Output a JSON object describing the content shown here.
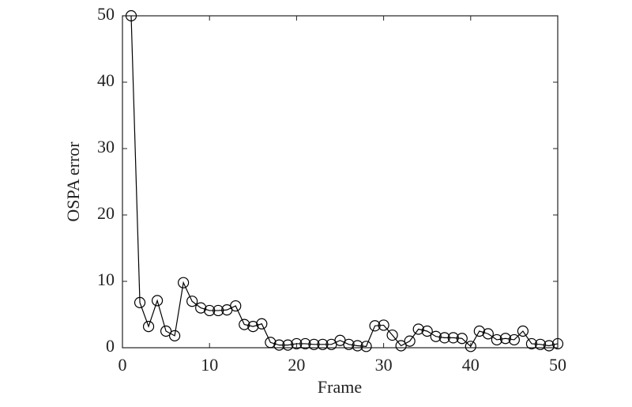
{
  "chart_data": {
    "type": "line",
    "x_label": "Frame",
    "y_label": "OSPA error",
    "x": [
      1,
      2,
      3,
      4,
      5,
      6,
      7,
      8,
      9,
      10,
      11,
      12,
      13,
      14,
      15,
      16,
      17,
      18,
      19,
      20,
      21,
      22,
      23,
      24,
      25,
      26,
      27,
      28,
      29,
      30,
      31,
      32,
      33,
      34,
      35,
      36,
      37,
      38,
      39,
      40,
      41,
      42,
      43,
      44,
      45,
      46,
      47,
      48,
      49,
      50
    ],
    "series": [
      {
        "color": "#000000",
        "values": [
          50,
          6.8,
          3.2,
          7.1,
          2.5,
          1.8,
          9.8,
          7.0,
          6.0,
          5.6,
          5.6,
          5.7,
          6.3,
          3.5,
          3.2,
          3.6,
          0.8,
          0.4,
          0.4,
          0.6,
          0.6,
          0.5,
          0.5,
          0.5,
          1.1,
          0.5,
          0.3,
          0.2,
          3.3,
          3.4,
          1.9,
          0.3,
          1.0,
          2.8,
          2.5,
          1.7,
          1.5,
          1.5,
          1.4,
          0.2,
          2.5,
          2.1,
          1.2,
          1.4,
          1.2,
          2.5,
          0.6,
          0.5,
          0.3,
          0.6
        ]
      }
    ],
    "xlim": [
      0,
      50
    ],
    "xticks": [
      0,
      10,
      20,
      30,
      40,
      50
    ],
    "ylim": [
      0,
      50
    ],
    "yticks": [
      0,
      10,
      20,
      30,
      40,
      50
    ],
    "marker": "open-circle"
  }
}
